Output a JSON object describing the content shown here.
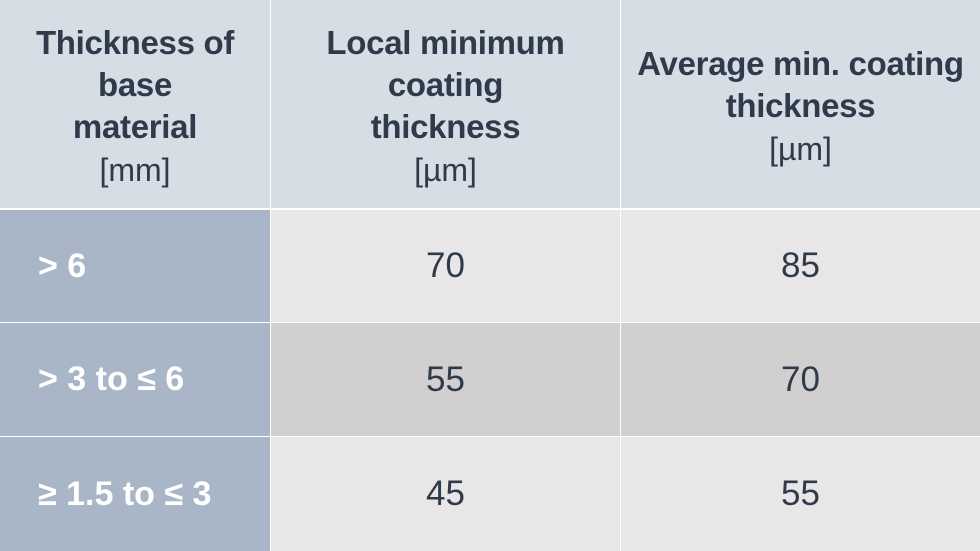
{
  "header": {
    "col1": {
      "title": "Thickness of base\nmaterial",
      "unit": "[mm]"
    },
    "col2": {
      "title": "Local minimum coating\nthickness",
      "unit": "[µm]"
    },
    "col3": {
      "title": "Average min. coating\nthickness",
      "unit": "[µm]"
    }
  },
  "rows": [
    {
      "label": "> 6",
      "local": "70",
      "average": "85"
    },
    {
      "label": "> 3 to ≤ 6",
      "local": "55",
      "average": "70"
    },
    {
      "label": "≥ 1.5 to ≤ 3",
      "local": "45",
      "average": "55"
    }
  ]
}
